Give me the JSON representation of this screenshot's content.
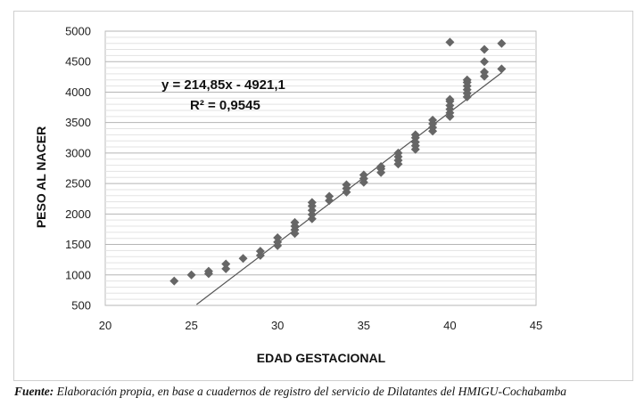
{
  "chart_data": {
    "type": "scatter",
    "xlabel": "EDAD GESTACIONAL",
    "ylabel": "PESO AL NACER",
    "xlim": [
      20,
      45
    ],
    "ylim": [
      500,
      5000
    ],
    "x_ticks": [
      20,
      25,
      30,
      35,
      40,
      45
    ],
    "y_ticks": [
      500,
      1000,
      1500,
      2000,
      2500,
      3000,
      3500,
      4000,
      4500,
      5000
    ],
    "grid": "horizontal",
    "marker": "diamond",
    "marker_color": "#666666",
    "trendline": {
      "type": "linear",
      "slope": 214.85,
      "intercept": -4921.1,
      "x_range": [
        25.3,
        43
      ]
    },
    "equation_text": "y = 214,85x - 4921,1",
    "r2_text": "R² = 0,9545",
    "points": [
      {
        "x": 24,
        "y": 900
      },
      {
        "x": 25,
        "y": 1000
      },
      {
        "x": 26,
        "y": 1020
      },
      {
        "x": 26,
        "y": 1060
      },
      {
        "x": 27,
        "y": 1100
      },
      {
        "x": 27,
        "y": 1180
      },
      {
        "x": 28,
        "y": 1270
      },
      {
        "x": 29,
        "y": 1320
      },
      {
        "x": 29,
        "y": 1390
      },
      {
        "x": 30,
        "y": 1480
      },
      {
        "x": 30,
        "y": 1540
      },
      {
        "x": 30,
        "y": 1610
      },
      {
        "x": 31,
        "y": 1680
      },
      {
        "x": 31,
        "y": 1740
      },
      {
        "x": 31,
        "y": 1800
      },
      {
        "x": 31,
        "y": 1860
      },
      {
        "x": 32,
        "y": 1920
      },
      {
        "x": 32,
        "y": 1990
      },
      {
        "x": 32,
        "y": 2060
      },
      {
        "x": 32,
        "y": 2130
      },
      {
        "x": 32,
        "y": 2190
      },
      {
        "x": 33,
        "y": 2220
      },
      {
        "x": 33,
        "y": 2290
      },
      {
        "x": 34,
        "y": 2360
      },
      {
        "x": 34,
        "y": 2420
      },
      {
        "x": 34,
        "y": 2480
      },
      {
        "x": 35,
        "y": 2520
      },
      {
        "x": 35,
        "y": 2580
      },
      {
        "x": 35,
        "y": 2640
      },
      {
        "x": 36,
        "y": 2680
      },
      {
        "x": 36,
        "y": 2740
      },
      {
        "x": 36,
        "y": 2780
      },
      {
        "x": 37,
        "y": 2820
      },
      {
        "x": 37,
        "y": 2880
      },
      {
        "x": 37,
        "y": 2940
      },
      {
        "x": 37,
        "y": 3000
      },
      {
        "x": 38,
        "y": 3060
      },
      {
        "x": 38,
        "y": 3120
      },
      {
        "x": 38,
        "y": 3180
      },
      {
        "x": 38,
        "y": 3250
      },
      {
        "x": 38,
        "y": 3300
      },
      {
        "x": 39,
        "y": 3360
      },
      {
        "x": 39,
        "y": 3420
      },
      {
        "x": 39,
        "y": 3480
      },
      {
        "x": 39,
        "y": 3540
      },
      {
        "x": 40,
        "y": 3600
      },
      {
        "x": 40,
        "y": 3660
      },
      {
        "x": 40,
        "y": 3720
      },
      {
        "x": 40,
        "y": 3780
      },
      {
        "x": 40,
        "y": 3850
      },
      {
        "x": 40,
        "y": 3880
      },
      {
        "x": 40,
        "y": 4820
      },
      {
        "x": 41,
        "y": 3920
      },
      {
        "x": 41,
        "y": 3980
      },
      {
        "x": 41,
        "y": 4040
      },
      {
        "x": 41,
        "y": 4100
      },
      {
        "x": 41,
        "y": 4160
      },
      {
        "x": 41,
        "y": 4200
      },
      {
        "x": 42,
        "y": 4260
      },
      {
        "x": 42,
        "y": 4330
      },
      {
        "x": 42,
        "y": 4500
      },
      {
        "x": 42,
        "y": 4700
      },
      {
        "x": 43,
        "y": 4380
      },
      {
        "x": 43,
        "y": 4800
      }
    ]
  },
  "source_note": {
    "label": "Fuente:",
    "text": " Elaboración propia, en base a cuadernos de registro del servicio de Dilatantes del HMIGU-Cochabamba"
  }
}
